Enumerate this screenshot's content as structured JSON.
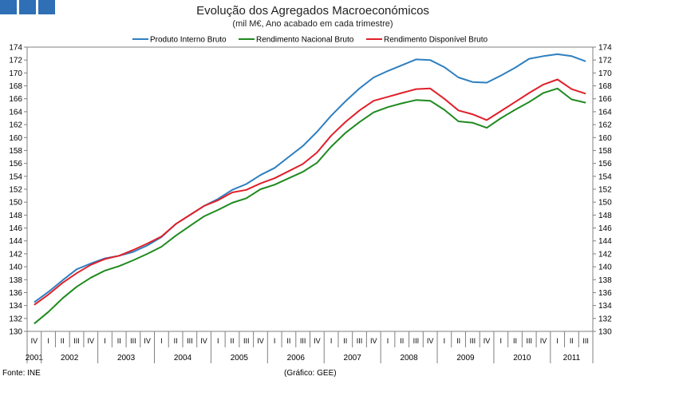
{
  "header": {
    "logo_blocks": 3,
    "logo_color": "#2e6fb5"
  },
  "footer": {
    "source": "Fonte: INE",
    "credit": "(Gráfico: GEE)"
  },
  "chart_data": {
    "type": "line",
    "title": "Evolução dos Agregados Macroeconómicos",
    "subtitle": "(mil M€, Ano acabado em cada trimestre)",
    "xlabel": "",
    "ylabel": "",
    "ylim": [
      130,
      174
    ],
    "ytick_step": 2,
    "grid": false,
    "legend_position": "top-center",
    "quarter_labels": [
      "IV",
      "I",
      "II",
      "III",
      "IV",
      "I",
      "II",
      "III",
      "IV",
      "I",
      "II",
      "III",
      "IV",
      "I",
      "II",
      "III",
      "IV",
      "I",
      "II",
      "III",
      "IV",
      "I",
      "II",
      "III",
      "IV",
      "I",
      "II",
      "III",
      "IV",
      "I",
      "II",
      "III",
      "IV",
      "I",
      "II",
      "III",
      "IV",
      "I",
      "II",
      "III"
    ],
    "years": [
      {
        "label": "2001",
        "start": 0,
        "count": 1
      },
      {
        "label": "2002",
        "start": 1,
        "count": 4
      },
      {
        "label": "2003",
        "start": 5,
        "count": 4
      },
      {
        "label": "2004",
        "start": 9,
        "count": 4
      },
      {
        "label": "2005",
        "start": 13,
        "count": 4
      },
      {
        "label": "2006",
        "start": 17,
        "count": 4
      },
      {
        "label": "2007",
        "start": 21,
        "count": 4
      },
      {
        "label": "2008",
        "start": 25,
        "count": 4
      },
      {
        "label": "2009",
        "start": 29,
        "count": 4
      },
      {
        "label": "2010",
        "start": 33,
        "count": 4
      },
      {
        "label": "2011",
        "start": 37,
        "count": 3
      }
    ],
    "series": [
      {
        "name": "Produto Interno Bruto",
        "color": "#2e7fc0",
        "values": [
          134.5,
          136.1,
          137.9,
          139.6,
          140.5,
          141.3,
          141.7,
          142.3,
          143.3,
          144.6,
          146.6,
          148.0,
          149.4,
          150.5,
          151.9,
          152.8,
          154.2,
          155.3,
          157.0,
          158.7,
          160.9,
          163.4,
          165.6,
          167.6,
          169.3,
          170.3,
          171.2,
          172.1,
          172.0,
          170.9,
          169.3,
          168.6,
          168.5,
          169.6,
          170.8,
          172.2,
          172.6,
          172.9,
          172.6,
          171.8
        ]
      },
      {
        "name": "Rendimento Nacional Bruto",
        "color": "#1f8a1f",
        "values": [
          131.2,
          133.0,
          135.1,
          136.9,
          138.3,
          139.4,
          140.1,
          141.0,
          142.0,
          143.1,
          144.8,
          146.3,
          147.8,
          148.8,
          149.9,
          150.6,
          152.0,
          152.7,
          153.7,
          154.7,
          156.1,
          158.6,
          160.7,
          162.4,
          163.9,
          164.7,
          165.3,
          165.8,
          165.7,
          164.3,
          162.5,
          162.3,
          161.5,
          163.0,
          164.3,
          165.5,
          166.9,
          167.6,
          165.9,
          165.4
        ]
      },
      {
        "name": "Rendimento Disponível Bruto",
        "color": "#e0202a",
        "values": [
          134.1,
          135.7,
          137.5,
          139.0,
          140.3,
          141.2,
          141.7,
          142.6,
          143.6,
          144.7,
          146.6,
          148.0,
          149.4,
          150.3,
          151.5,
          151.9,
          152.9,
          153.7,
          154.8,
          155.9,
          157.7,
          160.3,
          162.4,
          164.2,
          165.7,
          166.3,
          166.9,
          167.5,
          167.6,
          166.0,
          164.2,
          163.6,
          162.7,
          164.1,
          165.5,
          166.9,
          168.2,
          169.0,
          167.5,
          166.8
        ]
      }
    ]
  }
}
